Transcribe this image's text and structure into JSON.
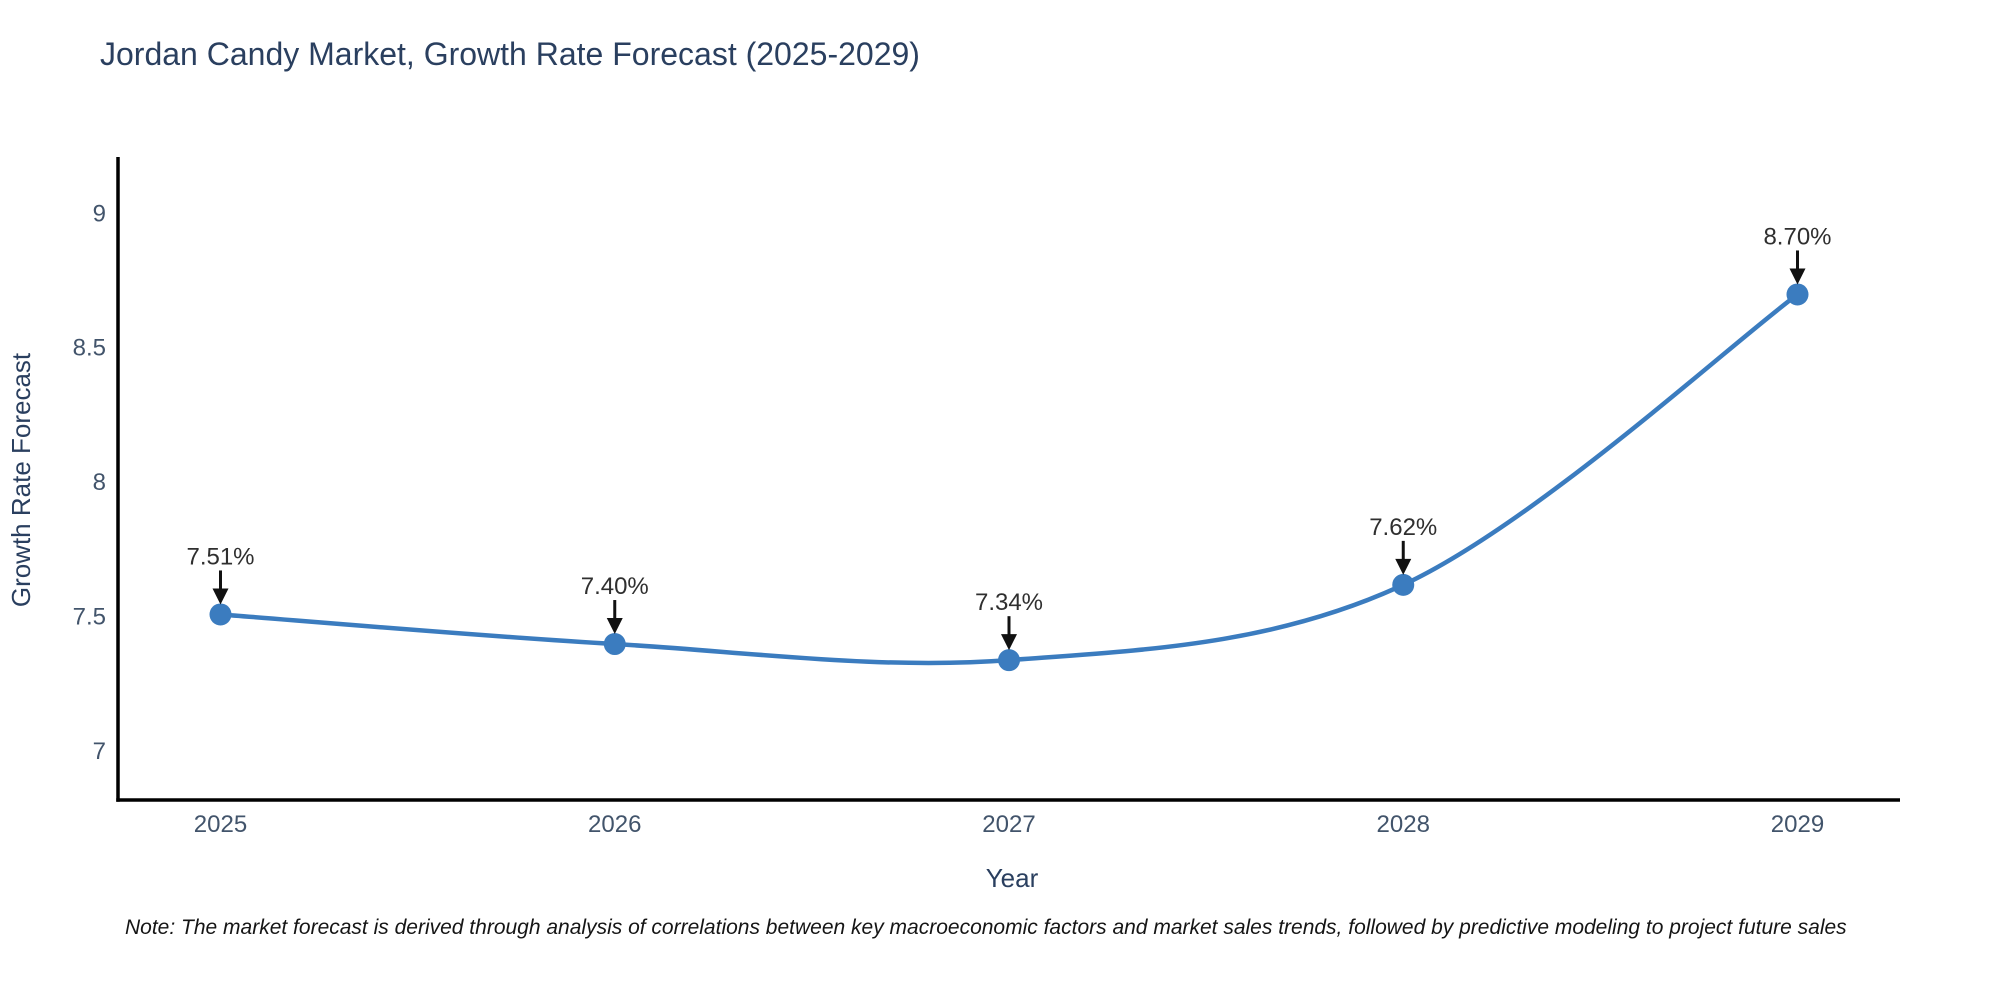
{
  "page": {
    "background": "#ffffff"
  },
  "chart_data": {
    "type": "line",
    "title": "Jordan Candy Market, Growth Rate Forecast (2025-2029)",
    "xlabel": "Year",
    "ylabel": "Growth Rate Forecast",
    "x": [
      2025,
      2026,
      2027,
      2028,
      2029
    ],
    "x_tick_labels": [
      "2025",
      "2026",
      "2027",
      "2028",
      "2029"
    ],
    "series": [
      {
        "name": "Growth Rate Forecast",
        "values": [
          7.51,
          7.4,
          7.34,
          7.62,
          8.7
        ]
      }
    ],
    "point_labels": [
      "7.51%",
      "7.40%",
      "7.34%",
      "7.62%",
      "8.70%"
    ],
    "y_ticks": [
      7,
      7.5,
      8,
      8.5,
      9
    ],
    "y_tick_labels": [
      "7",
      "7.5",
      "8",
      "8.5",
      "9"
    ],
    "xlim": [
      2024.74,
      2029.26
    ],
    "ylim": [
      6.82,
      9.2
    ],
    "grid": false,
    "legend": "none",
    "line_shape": "spline",
    "colors": {
      "line": "#3b7cbf",
      "marker": "#3b7cbf",
      "arrow": "#111111",
      "axis": "#000000",
      "title_text": "#2a3f5f",
      "tick_text": "#42546b",
      "annotation_text": "#2f2f2f"
    }
  },
  "note": {
    "text": "Note: The market forecast is derived through analysis of correlations between key macroeconomic factors and market sales trends, followed by predictive modeling to project future sales"
  }
}
